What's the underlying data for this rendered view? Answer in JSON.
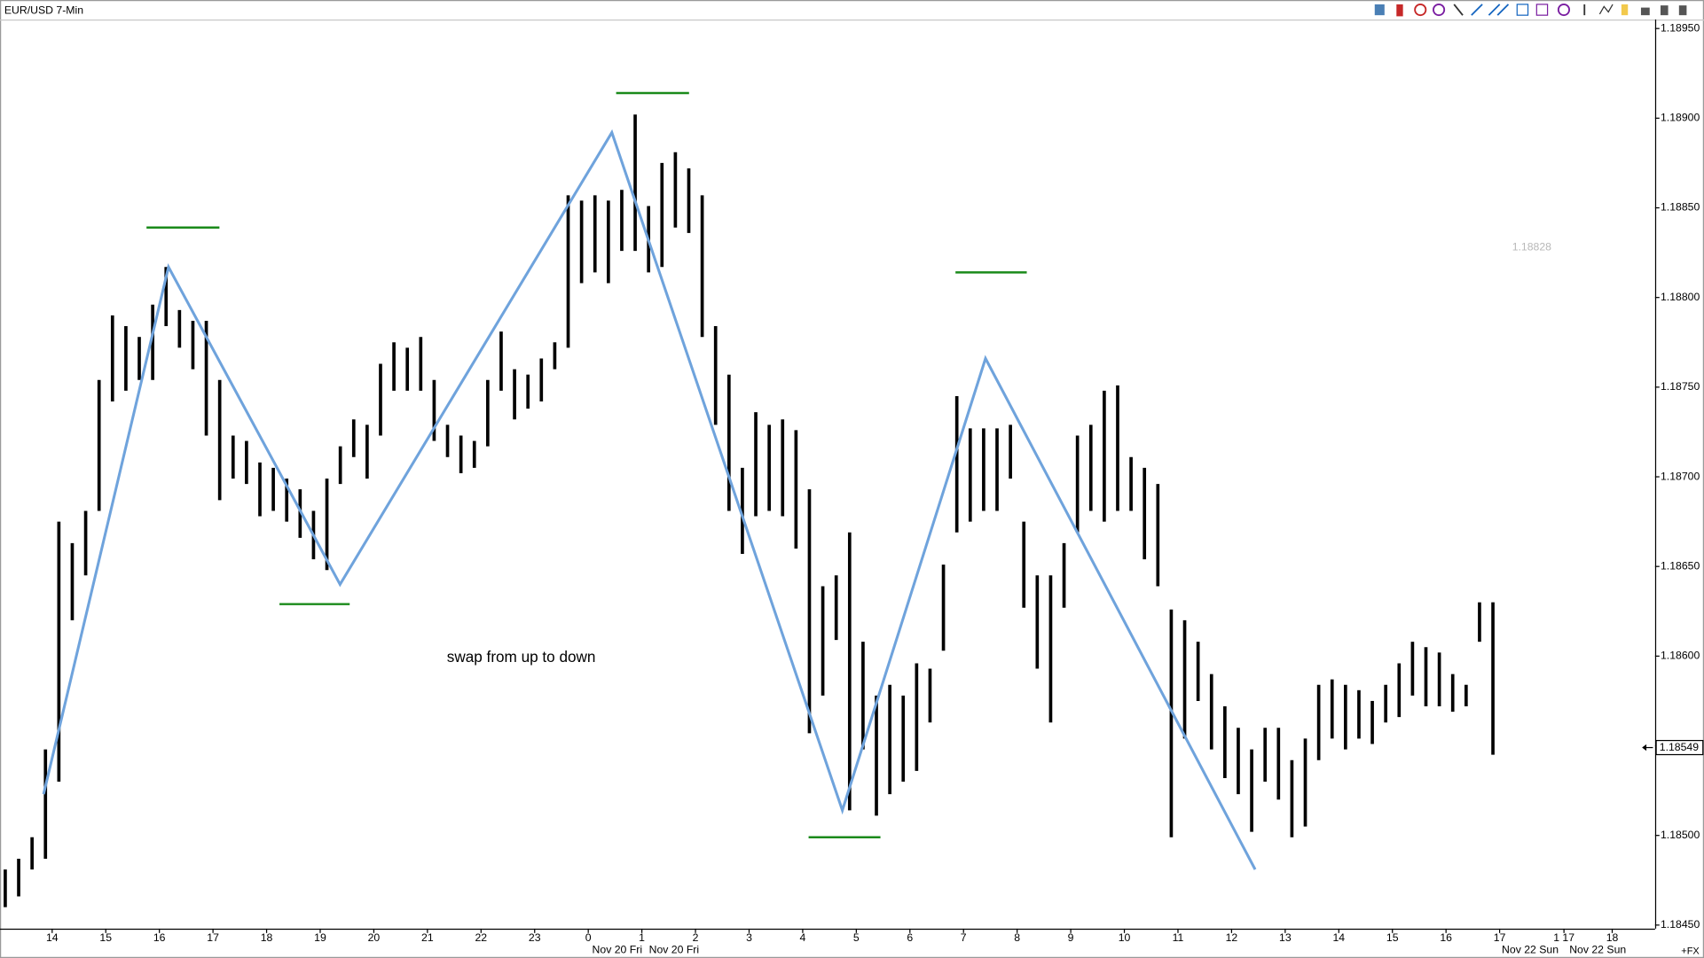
{
  "chart_data": {
    "type": "ohlc",
    "title": "EUR/USD 7-Min",
    "x": [
      -0.875,
      -0.625,
      -0.375,
      -0.125,
      0.125,
      0.375,
      0.625,
      0.875,
      1.125,
      1.375,
      1.625,
      1.875,
      2.125,
      2.375,
      2.625,
      2.875,
      3.125,
      3.375,
      3.625,
      3.875,
      4.125,
      4.375,
      4.625,
      4.875,
      5.125,
      5.375,
      5.625,
      5.875,
      6.125,
      6.375,
      6.625,
      6.875,
      7.125,
      7.375,
      7.625,
      7.875,
      8.125,
      8.375,
      8.625,
      8.875,
      9.125,
      9.375,
      9.625,
      9.875,
      10.125,
      10.375,
      10.625,
      10.875,
      11.125,
      11.375,
      11.625,
      11.875,
      12.125,
      12.375,
      12.625,
      12.875,
      13.125,
      13.375,
      13.625,
      13.875,
      14.125,
      14.375,
      14.625,
      14.875,
      15.125,
      15.375,
      15.625,
      15.875,
      16.125,
      16.375,
      16.625,
      16.875,
      17.125,
      17.375,
      17.625,
      17.875,
      18.125,
      18.375,
      18.625,
      18.875,
      19.125,
      19.375,
      19.625,
      19.875,
      20.125,
      20.375,
      20.625,
      20.875,
      21.125,
      21.375,
      21.625,
      21.875,
      22.125,
      22.375,
      22.625,
      22.875,
      23.125,
      23.375,
      23.625,
      23.875,
      24.125,
      24.375,
      24.625,
      24.875,
      25.125,
      25.375,
      25.625,
      25.875,
      26.125,
      26.375,
      26.625,
      26.875
    ],
    "high": [
      1.18481,
      1.18487,
      1.18499,
      1.18548,
      1.18675,
      1.18663,
      1.18681,
      1.18754,
      1.1879,
      1.18784,
      1.18778,
      1.18796,
      1.18817,
      1.18793,
      1.18787,
      1.18787,
      1.18754,
      1.18723,
      1.1872,
      1.18708,
      1.18705,
      1.18699,
      1.18693,
      1.18681,
      1.18699,
      1.18717,
      1.18732,
      1.18729,
      1.18763,
      1.18775,
      1.18772,
      1.18778,
      1.18754,
      1.18729,
      1.18723,
      1.1872,
      1.18754,
      1.18781,
      1.1876,
      1.18757,
      1.18766,
      1.18775,
      1.18857,
      1.18854,
      1.18857,
      1.18854,
      1.1886,
      1.18902,
      1.18851,
      1.18875,
      1.18881,
      1.18872,
      1.18857,
      1.18784,
      1.18757,
      1.18705,
      1.18736,
      1.18729,
      1.18732,
      1.18726,
      1.18693,
      1.18639,
      1.18645,
      1.18669,
      1.18608,
      1.18578,
      1.18584,
      1.18578,
      1.18596,
      1.18593,
      1.18651,
      1.18745,
      1.18727,
      1.18727,
      1.18727,
      1.18729,
      1.18675,
      1.18645,
      1.18645,
      1.18663,
      1.18723,
      1.18729,
      1.18748,
      1.18751,
      1.18711,
      1.18705,
      1.18696,
      1.18626,
      1.1862,
      1.18608,
      1.1859,
      1.18572,
      1.1856,
      1.18548,
      1.1856,
      1.1856,
      1.18542,
      1.18554,
      1.18584,
      1.18587,
      1.18584,
      1.18581,
      1.18575,
      1.18584,
      1.18596,
      1.18608,
      1.18605,
      1.18602,
      1.1859,
      1.18584,
      1.1863,
      1.1863
    ],
    "low": [
      1.1846,
      1.18466,
      1.18481,
      1.18487,
      1.1853,
      1.1862,
      1.18645,
      1.18681,
      1.18742,
      1.18748,
      1.18754,
      1.18754,
      1.18784,
      1.18772,
      1.1876,
      1.18723,
      1.18687,
      1.18699,
      1.18696,
      1.18678,
      1.18681,
      1.18675,
      1.18666,
      1.18654,
      1.18648,
      1.18696,
      1.18711,
      1.18699,
      1.18723,
      1.18748,
      1.18748,
      1.18748,
      1.1872,
      1.18711,
      1.18702,
      1.18705,
      1.18717,
      1.18748,
      1.18732,
      1.18738,
      1.18742,
      1.1876,
      1.18772,
      1.18808,
      1.18814,
      1.18808,
      1.18826,
      1.18826,
      1.18814,
      1.18817,
      1.18839,
      1.18836,
      1.18778,
      1.18729,
      1.18681,
      1.18657,
      1.18678,
      1.18681,
      1.18678,
      1.1866,
      1.18557,
      1.18578,
      1.18609,
      1.18514,
      1.18548,
      1.18511,
      1.18523,
      1.1853,
      1.18536,
      1.18563,
      1.18603,
      1.18669,
      1.18675,
      1.18681,
      1.18681,
      1.18699,
      1.18627,
      1.18593,
      1.18563,
      1.18627,
      1.18669,
      1.18681,
      1.18675,
      1.18681,
      1.18681,
      1.18654,
      1.18639,
      1.18499,
      1.18554,
      1.18575,
      1.18548,
      1.18532,
      1.18523,
      1.18502,
      1.1853,
      1.1852,
      1.18499,
      1.18505,
      1.18542,
      1.18554,
      1.18548,
      1.18554,
      1.18551,
      1.18563,
      1.18566,
      1.18578,
      1.18572,
      1.18572,
      1.18569,
      1.18572,
      1.18608,
      1.18545
    ],
    "color": "#000000",
    "zigzag": {
      "color": "#6fa3dc",
      "x": [
        -0.16,
        2.17,
        5.37,
        10.44,
        14.74,
        17.41,
        22.44
      ],
      "y": [
        1.18523,
        1.18817,
        1.1864,
        1.18892,
        1.18514,
        1.18766,
        1.18481
      ]
    },
    "levels": [
      {
        "x": [
          1.76,
          3.12
        ],
        "y": 1.18839
      },
      {
        "x": [
          4.24,
          5.55
        ],
        "y": 1.18629
      },
      {
        "x": [
          10.52,
          11.88
        ],
        "y": 1.18914
      },
      {
        "x": [
          14.11,
          15.45
        ],
        "y": 1.18499
      },
      {
        "x": [
          16.85,
          18.18
        ],
        "y": 1.18814
      }
    ],
    "level_color": "#1a8a1a",
    "annotation": {
      "text": "swap from up to down",
      "x": 8.75,
      "y": 1.18599
    },
    "watermark_price": {
      "text": "1.18828",
      "x": 27.6,
      "y": 1.18828
    },
    "last_price": {
      "value": 1.18549,
      "label": "1.18549"
    },
    "xlim": [
      -0.973,
      29.9
    ],
    "ylim": [
      1.18448,
      1.18955
    ],
    "xticks": [
      {
        "value": 0,
        "label": "14"
      },
      {
        "value": 1,
        "label": "15"
      },
      {
        "value": 2,
        "label": "16"
      },
      {
        "value": 3,
        "label": "17"
      },
      {
        "value": 4,
        "label": "18"
      },
      {
        "value": 5,
        "label": "19"
      },
      {
        "value": 6,
        "label": "20"
      },
      {
        "value": 7,
        "label": "21"
      },
      {
        "value": 8,
        "label": "22"
      },
      {
        "value": 9,
        "label": "23"
      },
      {
        "value": 10,
        "label": "0"
      },
      {
        "value": 11,
        "label": "1"
      },
      {
        "value": 12,
        "label": "2"
      },
      {
        "value": 13,
        "label": "3"
      },
      {
        "value": 14,
        "label": "4"
      },
      {
        "value": 15,
        "label": "5"
      },
      {
        "value": 16,
        "label": "6"
      },
      {
        "value": 17,
        "label": "7"
      },
      {
        "value": 18,
        "label": "8"
      },
      {
        "value": 19,
        "label": "9"
      },
      {
        "value": 20,
        "label": "10"
      },
      {
        "value": 21,
        "label": "11"
      },
      {
        "value": 22,
        "label": "12"
      },
      {
        "value": 23,
        "label": "13"
      },
      {
        "value": 24,
        "label": "14"
      },
      {
        "value": 25,
        "label": "15"
      },
      {
        "value": 26,
        "label": "16"
      },
      {
        "value": 27,
        "label": "17"
      },
      {
        "value": 28.2,
        "label": "1 17"
      },
      {
        "value": 29.1,
        "label": "18"
      }
    ],
    "date_labels": [
      {
        "value": 10.54,
        "label": "Nov 20 Fri"
      },
      {
        "value": 11.6,
        "label": "Nov 20 Fri"
      },
      {
        "value": 27.57,
        "label": "Nov 22 Sun"
      },
      {
        "value": 28.83,
        "label": "Nov 22 Sun"
      }
    ],
    "yticks": [
      {
        "value": 1.1845,
        "label": "1.18450"
      },
      {
        "value": 1.185,
        "label": "1.18500"
      },
      {
        "value": 1.1855,
        "label": "1.18550"
      },
      {
        "value": 1.186,
        "label": "1.18600"
      },
      {
        "value": 1.1865,
        "label": "1.18650"
      },
      {
        "value": 1.187,
        "label": "1.18700"
      },
      {
        "value": 1.1875,
        "label": "1.18750"
      },
      {
        "value": 1.188,
        "label": "1.18800"
      },
      {
        "value": 1.1885,
        "label": "1.18850"
      },
      {
        "value": 1.189,
        "label": "1.18900"
      },
      {
        "value": 1.1895,
        "label": "1.18950"
      }
    ],
    "corner_label": "+FX"
  }
}
